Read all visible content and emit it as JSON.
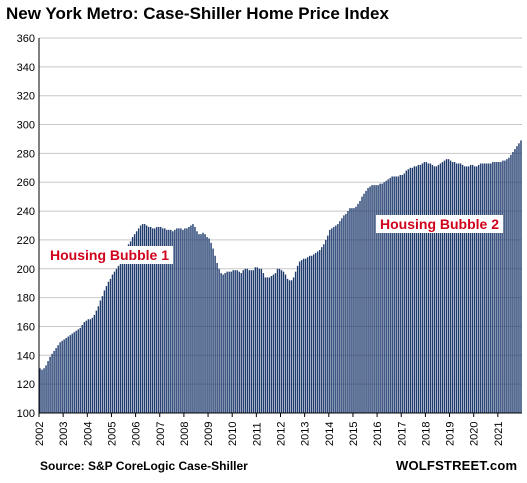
{
  "chart_data": {
    "type": "bar",
    "title": "New York Metro: Case-Shiller Home Price Index",
    "source": "Source: S&P CoreLogic Case-Shiller",
    "watermark": "WOLFSTREET.com",
    "xlabel": "",
    "ylabel": "",
    "ylim": [
      100,
      360
    ],
    "yticks": [
      100,
      120,
      140,
      160,
      180,
      200,
      220,
      240,
      260,
      280,
      300,
      320,
      340,
      360
    ],
    "grid": true,
    "bar_color": "#1f3b6e",
    "annotation_color": "#d0021b",
    "annotations": [
      "Housing Bubble 1",
      "Housing Bubble 2"
    ],
    "years": [
      "2002",
      "2003",
      "2004",
      "2005",
      "2006",
      "2007",
      "2008",
      "2009",
      "2010",
      "2011",
      "2012",
      "2013",
      "2014",
      "2015",
      "2016",
      "2017",
      "2018",
      "2019",
      "2020",
      "2021"
    ],
    "series": [
      {
        "values": [
          131,
          130,
          131,
          133,
          136,
          139,
          141,
          143,
          145,
          147,
          149,
          150,
          151,
          152,
          153,
          154,
          155,
          156,
          157,
          158,
          159,
          161,
          163,
          164,
          165,
          165,
          166,
          168,
          171,
          174,
          178,
          181,
          185,
          188,
          191,
          193,
          196,
          198,
          200,
          202,
          205,
          208,
          211,
          214,
          217,
          219,
          222,
          224,
          226,
          228,
          230,
          231,
          231,
          230,
          229,
          229,
          228,
          228,
          229,
          229,
          229,
          228,
          228,
          227,
          227,
          227,
          226,
          227,
          228,
          228,
          228,
          227,
          228,
          228,
          229,
          230,
          231,
          229,
          226,
          224,
          224,
          225,
          224,
          222,
          221,
          218,
          214,
          209,
          204,
          200,
          197,
          196,
          197,
          198,
          198,
          198,
          199,
          199,
          199,
          198,
          197,
          199,
          200,
          200,
          199,
          199,
          199,
          201,
          201,
          200,
          200,
          197,
          194,
          194,
          194,
          195,
          196,
          197,
          200,
          200,
          199,
          198,
          196,
          193,
          192,
          192,
          194,
          198,
          202,
          205,
          206,
          207,
          207,
          208,
          209,
          209,
          210,
          211,
          212,
          213,
          215,
          217,
          220,
          223,
          227,
          228,
          229,
          230,
          231,
          233,
          235,
          237,
          238,
          240,
          242,
          242,
          242,
          243,
          245,
          247,
          250,
          252,
          254,
          256,
          257,
          258,
          258,
          258,
          258,
          259,
          259,
          260,
          261,
          262,
          263,
          264,
          264,
          264,
          264,
          265,
          265,
          266,
          268,
          269,
          270,
          270,
          271,
          271,
          272,
          272,
          273,
          274,
          274,
          273,
          273,
          272,
          271,
          271,
          272,
          273,
          274,
          275,
          276,
          276,
          275,
          274,
          274,
          273,
          273,
          273,
          272,
          271,
          271,
          271,
          272,
          272,
          271,
          271,
          272,
          273,
          273,
          273,
          273,
          273,
          273,
          274,
          274,
          274,
          274,
          274,
          275,
          275,
          276,
          277,
          279,
          281,
          283,
          285,
          287,
          289
        ]
      }
    ]
  }
}
